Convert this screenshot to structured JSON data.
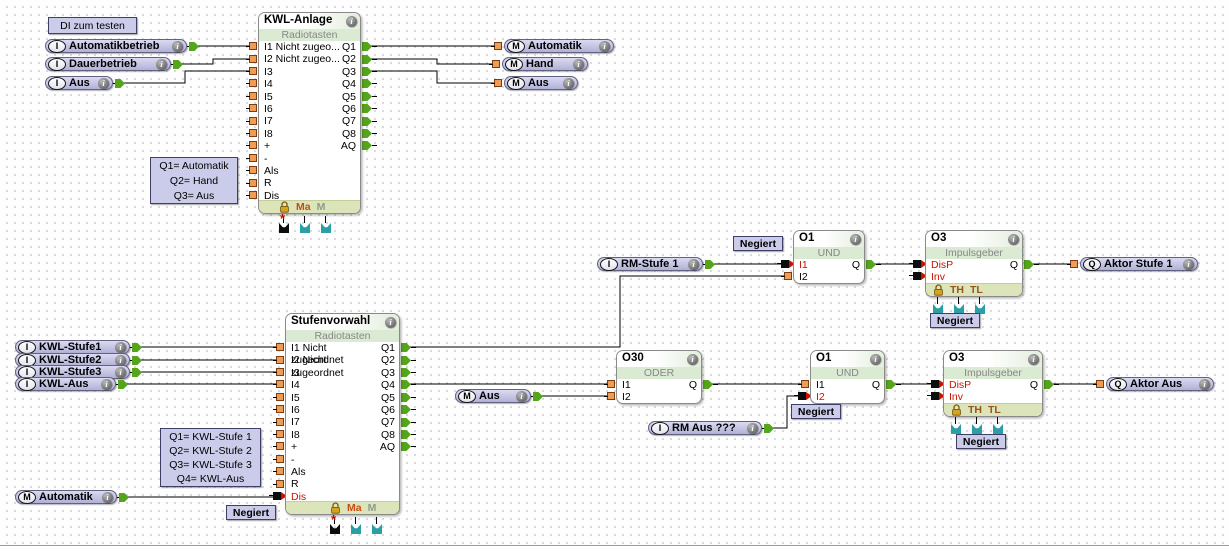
{
  "app": {
    "description": "function block diagram editor canvas"
  },
  "symbols": {
    "info": "i"
  },
  "colors": {
    "pill_bg": "#c4c4e4",
    "wire": "#000000",
    "pin_green": "#54a51c",
    "pin_orange": "#ef9d55",
    "pin_teal": "#2aa0a6",
    "negate_red": "#cc1100",
    "block_subtitle_bg": "#dbead3",
    "block_footer_bg": "#dce4ba",
    "footer_ma": "#cc4a12",
    "footer_m": "#8e9c8e",
    "footer_th_tl": "#99541a"
  },
  "notes": [
    {
      "id": "di_test",
      "lines": [
        "DI zum testen"
      ]
    },
    {
      "id": "kwl_legend",
      "lines": [
        "Q1= Automatik",
        "Q2= Hand",
        "Q3= Aus"
      ]
    },
    {
      "id": "stufen_legend",
      "lines": [
        "Q1= KWL-Stufe 1",
        "Q2= KWL-Stufe 2",
        "Q3= KWL-Stufe 3",
        "Q4= KWL-Aus"
      ]
    }
  ],
  "negate_labels": [
    "Negiert",
    "Negiert",
    "Negiert",
    "Negiert",
    "Negiert"
  ],
  "pills": [
    {
      "id": "automatikbetrieb",
      "type": "I",
      "label": "Automatikbetrieb",
      "info": true
    },
    {
      "id": "dauerbetrieb",
      "type": "I",
      "label": "Dauerbetrieb",
      "info": true
    },
    {
      "id": "aus_in",
      "type": "I",
      "label": "Aus",
      "info": true
    },
    {
      "id": "m_automatik",
      "type": "M",
      "label": "Automatik",
      "info": true
    },
    {
      "id": "m_hand",
      "type": "M",
      "label": "Hand",
      "info": true
    },
    {
      "id": "m_aus_out",
      "type": "M",
      "label": "Aus",
      "info": true
    },
    {
      "id": "rm_stufe1",
      "type": "I",
      "label": "RM-Stufe 1",
      "info": true
    },
    {
      "id": "aktor_stufe1",
      "type": "Q",
      "label": "Aktor Stufe 1",
      "info": true
    },
    {
      "id": "kwl_stufe1",
      "type": "I",
      "label": "KWL-Stufe1",
      "info": true
    },
    {
      "id": "kwl_stufe2",
      "type": "I",
      "label": "KWL-Stufe2",
      "info": true
    },
    {
      "id": "kwl_stufe3",
      "type": "I",
      "label": "KWL-Stufe3",
      "info": true
    },
    {
      "id": "kwl_aus",
      "type": "I",
      "label": "KWL-Aus",
      "info": true
    },
    {
      "id": "m_aus_in",
      "type": "M",
      "label": "Aus",
      "info": true
    },
    {
      "id": "rm_aus",
      "type": "I",
      "label": "RM Aus ???",
      "info": true
    },
    {
      "id": "aktor_aus",
      "type": "Q",
      "label": "Aktor Aus",
      "info": true
    },
    {
      "id": "m_automatik_in",
      "type": "M",
      "label": "Automatik",
      "info": true
    }
  ],
  "blocks": [
    {
      "id": "kwl_anlage",
      "title": "KWL-Anlage",
      "subtitle": "Radiotasten",
      "rows": [
        {
          "l": "I1 Nicht zugeo...",
          "r": "Q1"
        },
        {
          "l": "I2 Nicht zugeo...",
          "r": "Q2"
        },
        {
          "l": "I3",
          "r": "Q3"
        },
        {
          "l": "I4",
          "r": "Q4"
        },
        {
          "l": "I5",
          "r": "Q5"
        },
        {
          "l": "I6",
          "r": "Q6"
        },
        {
          "l": "I7",
          "r": "Q7"
        },
        {
          "l": "I8",
          "r": "Q8"
        },
        {
          "l": "+",
          "r": "AQ"
        },
        {
          "l": "-"
        },
        {
          "l": "Als"
        },
        {
          "l": "R"
        },
        {
          "l": "Dis"
        }
      ],
      "footer": {
        "icon": "lock-icon",
        "labels": [
          "Ma",
          "M"
        ]
      }
    },
    {
      "id": "stufenvorwahl",
      "title": "Stufenvorwahl",
      "subtitle": "Radiotasten",
      "rows": [
        {
          "l": "I1 Nicht zugeordnet",
          "r": "Q1"
        },
        {
          "l": "I2 Nicht zugeordnet",
          "r": "Q2"
        },
        {
          "l": "I3",
          "r": "Q3"
        },
        {
          "l": "I4",
          "r": "Q4"
        },
        {
          "l": "I5",
          "r": "Q5"
        },
        {
          "l": "I6",
          "r": "Q6"
        },
        {
          "l": "I7",
          "r": "Q7"
        },
        {
          "l": "I8",
          "r": "Q8"
        },
        {
          "l": "+",
          "r": "AQ"
        },
        {
          "l": "-"
        },
        {
          "l": "Als"
        },
        {
          "l": "R"
        },
        {
          "l": "Dis",
          "neg": true
        }
      ],
      "footer": {
        "icon": "lock-icon",
        "labels": [
          "Ma",
          "M"
        ]
      }
    },
    {
      "id": "o1_oben",
      "title": "O1",
      "subtitle": "UND",
      "rows": [
        {
          "l": "I1",
          "neg": true,
          "r": "Q"
        },
        {
          "l": "I2"
        }
      ]
    },
    {
      "id": "o3_oben",
      "title": "O3",
      "subtitle": "Impulsgeber",
      "rows": [
        {
          "l": "DisP",
          "neg": true,
          "r": "Q"
        },
        {
          "l": "Inv",
          "neg": true
        }
      ],
      "footer": {
        "icon": "lock-icon",
        "labels": [
          "TH",
          "TL"
        ]
      }
    },
    {
      "id": "o30",
      "title": "O30",
      "subtitle": "ODER",
      "rows": [
        {
          "l": "I1",
          "r": "Q"
        },
        {
          "l": "I2"
        }
      ]
    },
    {
      "id": "o1_unten",
      "title": "O1",
      "subtitle": "UND",
      "rows": [
        {
          "l": "I1",
          "r": "Q"
        },
        {
          "l": "I2",
          "neg": true
        }
      ]
    },
    {
      "id": "o3_unten",
      "title": "O3",
      "subtitle": "Impulsgeber",
      "rows": [
        {
          "l": "DisP",
          "neg": true,
          "r": "Q"
        },
        {
          "l": "Inv",
          "neg": true
        }
      ],
      "footer": {
        "icon": "lock-icon",
        "labels": [
          "TH",
          "TL"
        ]
      }
    }
  ],
  "wires": [
    {
      "from": "automatikbetrieb",
      "to": "kwl_anlage.I1"
    },
    {
      "from": "dauerbetrieb",
      "to": "kwl_anlage.I2"
    },
    {
      "from": "aus_in",
      "to": "kwl_anlage.I3"
    },
    {
      "from": "kwl_anlage.Q1",
      "to": "m_automatik"
    },
    {
      "from": "kwl_anlage.Q2",
      "to": "m_hand"
    },
    {
      "from": "kwl_anlage.Q3",
      "to": "m_aus_out"
    },
    {
      "from": "rm_stufe1",
      "to": "o1_oben.I1"
    },
    {
      "from": "stufenvorwahl.Q1",
      "to": "o1_oben.I2"
    },
    {
      "from": "o1_oben.Q",
      "to": "o3_oben.DisP"
    },
    {
      "from": "o3_oben.Q",
      "to": "aktor_stufe1"
    },
    {
      "from": "kwl_stufe1",
      "to": "stufenvorwahl.I1"
    },
    {
      "from": "kwl_stufe2",
      "to": "stufenvorwahl.I2"
    },
    {
      "from": "kwl_stufe3",
      "to": "stufenvorwahl.I3"
    },
    {
      "from": "kwl_aus",
      "to": "stufenvorwahl.I4"
    },
    {
      "from": "stufenvorwahl.Q4",
      "to": "o30.I1"
    },
    {
      "from": "m_aus_in",
      "to": "o30.I2"
    },
    {
      "from": "o30.Q",
      "to": "o1_unten.I1"
    },
    {
      "from": "rm_aus",
      "to": "o1_unten.I2"
    },
    {
      "from": "o1_unten.Q",
      "to": "o3_unten.DisP"
    },
    {
      "from": "o3_unten.Q",
      "to": "aktor_aus"
    },
    {
      "from": "m_automatik_in",
      "to": "stufenvorwahl.Dis"
    }
  ]
}
